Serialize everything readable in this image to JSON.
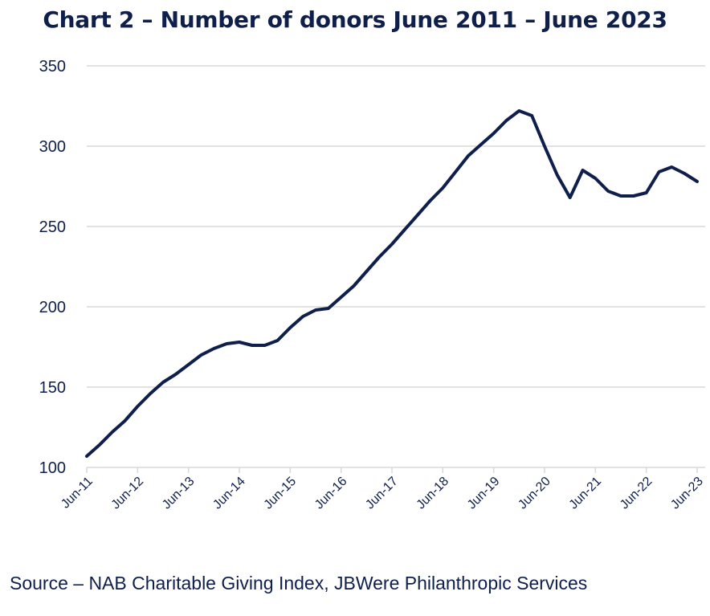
{
  "title": "Chart 2 – Number of donors June 2011 – June 2023",
  "source": "Source – NAB Charitable Giving Index, JBWere Philanthropic Services",
  "colors": {
    "line": "#0f1f4b",
    "grid": "#d9d9d9",
    "text": "#0f1f4b"
  },
  "chart_data": {
    "type": "line",
    "title": "Chart 2 – Number of donors June 2011 – June 2023",
    "xlabel": "",
    "ylabel": "",
    "ylim": [
      100,
      350
    ],
    "yticks": [
      "100",
      "150",
      "200",
      "250",
      "300",
      "350"
    ],
    "xticks": [
      "Jun-11",
      "Jun-12",
      "Jun-13",
      "Jun-14",
      "Jun-15",
      "Jun-16",
      "Jun-17",
      "Jun-18",
      "Jun-19",
      "Jun-20",
      "Jun-21",
      "Jun-22",
      "Jun-23"
    ],
    "grid": "horizontal",
    "legend": "none",
    "series": [
      {
        "x": [
          "Jun-11",
          "Sep-11",
          "Dec-11",
          "Mar-12",
          "Jun-12",
          "Sep-12",
          "Dec-12",
          "Mar-13",
          "Jun-13",
          "Sep-13",
          "Dec-13",
          "Mar-14",
          "Jun-14",
          "Sep-14",
          "Dec-14",
          "Mar-15",
          "Jun-15",
          "Sep-15",
          "Dec-15",
          "Mar-16",
          "Jun-16",
          "Sep-16",
          "Dec-16",
          "Mar-17",
          "Jun-17",
          "Sep-17",
          "Dec-17",
          "Mar-18",
          "Jun-18",
          "Sep-18",
          "Dec-18",
          "Mar-19",
          "Jun-19",
          "Sep-19",
          "Dec-19",
          "Mar-20",
          "Jun-20",
          "Sep-20",
          "Dec-20",
          "Mar-21",
          "Jun-21",
          "Sep-21",
          "Dec-21",
          "Mar-22",
          "Jun-22",
          "Sep-22",
          "Dec-22",
          "Mar-23",
          "Jun-23"
        ],
        "values": [
          107,
          114,
          122,
          129,
          138,
          146,
          153,
          158,
          164,
          170,
          174,
          177,
          178,
          176,
          176,
          179,
          187,
          194,
          198,
          199,
          206,
          213,
          222,
          231,
          239,
          248,
          257,
          266,
          274,
          284,
          294,
          301,
          308,
          316,
          322,
          319,
          300,
          282,
          268,
          285,
          280,
          272,
          269,
          269,
          271,
          284,
          287,
          283,
          278
        ]
      }
    ]
  }
}
